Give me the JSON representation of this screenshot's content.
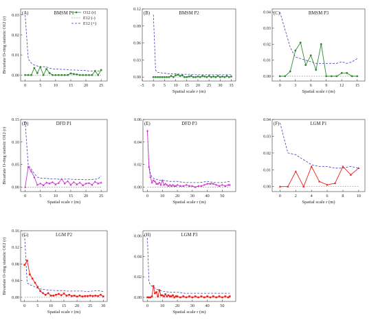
{
  "figure": {
    "legend": {
      "observed": "O12 (r)",
      "lower": "E12 (-)",
      "upper": "E12 (+)"
    },
    "colors": {
      "green": "#2e8b2e",
      "magenta": "#cc33cc",
      "red": "#e8201b",
      "envelope": "#3b3bb5",
      "lower": "#999999"
    }
  },
  "chart_data": [
    {
      "panel": "(A)",
      "title": "BMSM P1",
      "type": "line",
      "color": "green",
      "ylabel": "Bivariate O-ring statistic O12 (r)",
      "xlabel": "",
      "xlim": [
        -1.5,
        27
      ],
      "ylim": [
        -0.003,
        0.033
      ],
      "xticks": [
        0,
        5,
        10,
        15,
        20,
        25
      ],
      "yticks": [
        0.0,
        0.01,
        0.02,
        0.03
      ],
      "ytick_labels": [
        "0.00",
        "0.01",
        "0.02",
        "0.03"
      ],
      "legend": true,
      "observed": {
        "x": [
          0,
          1,
          2,
          3,
          4,
          5,
          6,
          7,
          8,
          9,
          10,
          11,
          12,
          13,
          14,
          15,
          16,
          17,
          18,
          19,
          20,
          21,
          22,
          23,
          24,
          25
        ],
        "y": [
          0,
          0,
          0,
          0.0035,
          0.001,
          0.004,
          0,
          0.003,
          0.001,
          0,
          0,
          0,
          0,
          0,
          0,
          0.0008,
          0.0005,
          0.0003,
          0,
          0,
          0,
          0,
          0,
          0.002,
          0,
          0.0025
        ]
      },
      "upper": {
        "x": [
          0,
          1,
          2,
          3,
          4,
          5,
          6,
          7,
          8,
          9,
          10,
          11,
          12,
          13,
          14,
          15,
          16,
          17,
          18,
          19,
          20,
          21,
          22,
          23,
          24,
          25
        ],
        "y": [
          0.03,
          0.008,
          0.006,
          0.005,
          0.0045,
          0.004,
          0.0042,
          0.004,
          0.0035,
          0.003,
          0.003,
          0.003,
          0.0028,
          0.0028,
          0.0027,
          0.0025,
          0.0025,
          0.0025,
          0.0023,
          0.0023,
          0.0022,
          0.002,
          0.002,
          0.0022,
          0.002,
          0.0022
        ]
      },
      "lower": {
        "x": [
          0,
          25
        ],
        "y": [
          0,
          0
        ]
      }
    },
    {
      "panel": "(B)",
      "title": "BMSM P2",
      "type": "line",
      "color": "green",
      "ylabel": "",
      "xlabel": "Spatial scale r (m)",
      "xlim": [
        -5,
        37
      ],
      "ylim": [
        -0.007,
        0.12
      ],
      "xticks": [
        -5,
        0,
        5,
        10,
        15,
        20,
        25,
        30,
        35
      ],
      "yticks": [
        0.0,
        0.03,
        0.06,
        0.09,
        0.12
      ],
      "ytick_labels": [
        "0.00",
        "0.03",
        "0.06",
        "0.09",
        "0.12"
      ],
      "observed": {
        "x": [
          0,
          1,
          2,
          3,
          4,
          5,
          6,
          7,
          8,
          9,
          10,
          11,
          12,
          13,
          14,
          15,
          16,
          17,
          18,
          19,
          20,
          21,
          22,
          23,
          24,
          25,
          26,
          27,
          28,
          29,
          30,
          31,
          32,
          33,
          34,
          35
        ],
        "y": [
          0,
          0,
          0,
          0,
          0,
          0,
          0,
          0,
          0.002,
          0,
          0.003,
          0.004,
          0.002,
          0.003,
          0,
          0,
          0.001,
          0.002,
          0,
          0,
          0.001,
          0,
          0.002,
          0.001,
          0,
          0.002,
          0,
          0.001,
          0,
          0.002,
          0,
          0.001,
          0,
          0.002,
          0,
          0.001
        ]
      },
      "upper": {
        "x": [
          0,
          1,
          2,
          3,
          4,
          5,
          6,
          7,
          8,
          9,
          10,
          12,
          14,
          16,
          18,
          20,
          22,
          24,
          26,
          28,
          30,
          32,
          34,
          35
        ],
        "y": [
          0.11,
          0.012,
          0.008,
          0.008,
          0.007,
          0.007,
          0.006,
          0.006,
          0.006,
          0.005,
          0.006,
          0.005,
          0.005,
          0.005,
          0.004,
          0.004,
          0.004,
          0.004,
          0.004,
          0.004,
          0.004,
          0.004,
          0.004,
          0.004
        ]
      },
      "lower": {
        "x": [
          0,
          35
        ],
        "y": [
          0,
          0
        ]
      }
    },
    {
      "panel": "(C)",
      "title": "BMSM P3",
      "type": "line",
      "color": "green",
      "ylabel": "",
      "xlabel": "Spatial scale r (m)",
      "xlim": [
        -1.5,
        16.5
      ],
      "ylim": [
        -0.003,
        0.042
      ],
      "xticks": [
        0,
        3,
        6,
        9,
        12,
        15
      ],
      "yticks": [
        0.0,
        0.01,
        0.02,
        0.03,
        0.04
      ],
      "ytick_labels": [
        "0.00",
        "0.01",
        "0.02",
        "0.03",
        "0.04"
      ],
      "observed": {
        "x": [
          0,
          1,
          2,
          3,
          4,
          5,
          6,
          7,
          8,
          9,
          10,
          11,
          12,
          13,
          14,
          15
        ],
        "y": [
          0,
          0,
          0.003,
          0.016,
          0.021,
          0.007,
          0.013,
          0.004,
          0.02,
          0,
          0,
          0,
          0.002,
          0.002,
          0,
          0
        ]
      },
      "upper": {
        "x": [
          0,
          1,
          2,
          3,
          4,
          5,
          6,
          7,
          8,
          9,
          10,
          11,
          12,
          13,
          14,
          15
        ],
        "y": [
          0.04,
          0.029,
          0.018,
          0.012,
          0.011,
          0.01,
          0.009,
          0.008,
          0.008,
          0.008,
          0.008,
          0.008,
          0.009,
          0.008,
          0.009,
          0.011
        ]
      },
      "lower": {
        "x": [
          0,
          15
        ],
        "y": [
          0,
          0
        ]
      }
    },
    {
      "panel": "(D)",
      "title": "DFD P1",
      "type": "line",
      "color": "magenta",
      "ylabel": "Bivariate O-ring statistic O12 (r)",
      "xlabel": "Spatial scale r (m)",
      "xlim": [
        -1.5,
        27
      ],
      "ylim": [
        -0.01,
        0.15
      ],
      "xticks": [
        0,
        5,
        10,
        15,
        20,
        25
      ],
      "yticks": [
        0.0,
        0.05,
        0.1,
        0.15
      ],
      "ytick_labels": [
        "0.00",
        "0.05",
        "0.10",
        "0.15"
      ],
      "observed": {
        "x": [
          0,
          1,
          2,
          3,
          4,
          5,
          6,
          7,
          8,
          9,
          10,
          11,
          12,
          13,
          14,
          15,
          16,
          17,
          18,
          19,
          20,
          21,
          22,
          23,
          24,
          25
        ],
        "y": [
          0,
          0.045,
          0.035,
          0.022,
          0.005,
          0.008,
          0.004,
          0.01,
          0.008,
          0.011,
          0.006,
          0.009,
          0.018,
          0.008,
          0.013,
          0.005,
          0.011,
          0.006,
          0.01,
          0.004,
          0.008,
          0.009,
          0.005,
          0.012,
          0.008,
          0.01
        ]
      },
      "upper": {
        "x": [
          0,
          1,
          2,
          3,
          4,
          5,
          6,
          7,
          8,
          10,
          12,
          14,
          16,
          18,
          20,
          22,
          24,
          25
        ],
        "y": [
          0.145,
          0.048,
          0.04,
          0.03,
          0.022,
          0.02,
          0.019,
          0.02,
          0.018,
          0.018,
          0.017,
          0.018,
          0.017,
          0.017,
          0.016,
          0.017,
          0.018,
          0.025
        ]
      },
      "lower": {
        "x": [
          0,
          25
        ],
        "y": [
          0,
          0
        ]
      }
    },
    {
      "panel": "(E)",
      "title": "DFD P3",
      "type": "line",
      "color": "magenta",
      "ylabel": "",
      "xlabel": "Spatial scale r (m)",
      "xlim": [
        -3,
        59
      ],
      "ylim": [
        -0.004,
        0.06
      ],
      "xticks": [
        0,
        10,
        20,
        30,
        40,
        50
      ],
      "yticks": [
        0.0,
        0.02,
        0.04,
        0.06
      ],
      "ytick_labels": [
        "0.00",
        "0.02",
        "0.04",
        "0.06"
      ],
      "observed": {
        "x": [
          0,
          1,
          2,
          3,
          4,
          5,
          6,
          7,
          8,
          9,
          10,
          11,
          12,
          13,
          14,
          15,
          16,
          17,
          18,
          19,
          20,
          22,
          24,
          26,
          28,
          30,
          32,
          34,
          36,
          38,
          40,
          42,
          44,
          46,
          48,
          50,
          52,
          54,
          55
        ],
        "y": [
          0.05,
          0.018,
          0.009,
          0.004,
          0.006,
          0.005,
          0.003,
          0.003,
          0.004,
          0.002,
          0.006,
          0.002,
          0.003,
          0.002,
          0.001,
          0.002,
          0.001,
          0.002,
          0.001,
          0.001,
          0.002,
          0.001,
          0.001,
          0.002,
          0.001,
          0.001,
          0.0,
          0.001,
          0.001,
          0.002,
          0.003,
          0.003,
          0.003,
          0.002,
          0.001,
          0.002,
          0.001,
          0.002,
          0.002
        ]
      },
      "upper": {
        "x": [
          0,
          1,
          2,
          3,
          4,
          5,
          6,
          8,
          10,
          15,
          20,
          25,
          30,
          35,
          40,
          45,
          50,
          55
        ],
        "y": [
          0.05,
          0.02,
          0.012,
          0.009,
          0.008,
          0.007,
          0.007,
          0.006,
          0.006,
          0.005,
          0.005,
          0.004,
          0.004,
          0.004,
          0.005,
          0.004,
          0.004,
          0.005
        ]
      },
      "lower": {
        "x": [
          0,
          55
        ],
        "y": [
          0,
          0
        ]
      }
    },
    {
      "panel": "(F)",
      "title": "LGM  P1",
      "type": "line",
      "color": "red",
      "ylabel": "",
      "xlabel": "Spatial scale r (m)",
      "xlim": [
        -1,
        10.8
      ],
      "ylim": [
        -0.003,
        0.04
      ],
      "xticks": [
        0,
        2,
        4,
        6,
        8,
        10
      ],
      "yticks": [
        0.0,
        0.01,
        0.02,
        0.03,
        0.04
      ],
      "ytick_labels": [
        "0.00",
        "0.01",
        "0.02",
        "0.03",
        "0.04"
      ],
      "observed": {
        "x": [
          0,
          1,
          2,
          3,
          4,
          5,
          6,
          7,
          8,
          9,
          10
        ],
        "y": [
          0,
          0,
          0.009,
          0,
          0.012,
          0.003,
          0.001,
          0.002,
          0.012,
          0.007,
          0.011
        ]
      },
      "upper": {
        "x": [
          0,
          1,
          2,
          3,
          4,
          5,
          6,
          7,
          8,
          9,
          10
        ],
        "y": [
          0.038,
          0.02,
          0.019,
          0.016,
          0.013,
          0.012,
          0.012,
          0.011,
          0.011,
          0.012,
          0.011
        ]
      },
      "lower": {
        "x": [
          0,
          10
        ],
        "y": [
          0,
          0
        ]
      }
    },
    {
      "panel": "(G)",
      "title": "LGM  P2",
      "type": "line",
      "color": "red",
      "ylabel": "Bivariate O-ring statistic O12 (r)",
      "xlabel": "Spatial scale r (m)",
      "xlim": [
        -1.5,
        31.5
      ],
      "ylim": [
        -0.01,
        0.16
      ],
      "xticks": [
        0,
        5,
        10,
        15,
        20,
        25,
        30
      ],
      "yticks": [
        0.0,
        0.04,
        0.08,
        0.12,
        0.16
      ],
      "ytick_labels": [
        "0.00",
        "0.04",
        "0.08",
        "0.12",
        "0.16"
      ],
      "observed": {
        "x": [
          0,
          1,
          2,
          3,
          4,
          5,
          6,
          7,
          8,
          9,
          10,
          11,
          12,
          13,
          14,
          15,
          16,
          17,
          18,
          19,
          20,
          21,
          22,
          23,
          24,
          25,
          26,
          27,
          28,
          29,
          30
        ],
        "y": [
          0.078,
          0.088,
          0.055,
          0.045,
          0.035,
          0.025,
          0.015,
          0.01,
          0.006,
          0.01,
          0.004,
          0.004,
          0.006,
          0.008,
          0.005,
          0.009,
          0.004,
          0.006,
          0.003,
          0.004,
          0.002,
          0.004,
          0.002,
          0.003,
          0.003,
          0.004,
          0.003,
          0.004,
          0.003,
          0.006,
          0.002
        ]
      },
      "upper": {
        "x": [
          0,
          1,
          2,
          3,
          4,
          5,
          6,
          8,
          10,
          12,
          14,
          16,
          18,
          20,
          22,
          24,
          26,
          28,
          30
        ],
        "y": [
          0.15,
          0.035,
          0.03,
          0.028,
          0.025,
          0.022,
          0.02,
          0.018,
          0.017,
          0.016,
          0.016,
          0.015,
          0.015,
          0.015,
          0.015,
          0.014,
          0.015,
          0.016,
          0.014
        ]
      },
      "lower": {
        "x": [
          0,
          30
        ],
        "y": [
          0,
          0
        ]
      }
    },
    {
      "panel": "(H)",
      "title": "LGM  P3",
      "type": "line",
      "color": "red",
      "ylabel": "",
      "xlabel": "Spatial scale r (m)",
      "xlim": [
        -3,
        59
      ],
      "ylim": [
        -0.004,
        0.065
      ],
      "xticks": [
        0,
        10,
        20,
        30,
        40,
        50
      ],
      "yticks": [
        0.0,
        0.02,
        0.04,
        0.06
      ],
      "ytick_labels": [
        "0.00",
        "0.02",
        "0.04",
        "0.06"
      ],
      "observed": {
        "x": [
          0,
          1,
          2,
          3,
          4,
          5,
          6,
          7,
          8,
          9,
          10,
          11,
          12,
          13,
          14,
          15,
          16,
          17,
          18,
          19,
          20,
          22,
          24,
          26,
          28,
          30,
          32,
          34,
          36,
          38,
          40,
          42,
          44,
          46,
          48,
          50,
          52,
          54,
          55
        ],
        "y": [
          0,
          0,
          0,
          0.001,
          0.011,
          0.004,
          0.005,
          0.001,
          0.007,
          0.002,
          0.002,
          0.001,
          0.003,
          0.001,
          0.002,
          0.001,
          0.001,
          0.002,
          0.0,
          0.001,
          0.001,
          0.0,
          0.001,
          0.0,
          0.001,
          0.0,
          0.001,
          0.0,
          0.001,
          0.0,
          0.001,
          0.0,
          0.001,
          0.0,
          0.001,
          0.0,
          0.001,
          0.0,
          0.001
        ]
      },
      "upper": {
        "x": [
          0,
          1,
          2,
          3,
          4,
          5,
          6,
          8,
          10,
          15,
          20,
          25,
          30,
          35,
          40,
          45,
          50,
          55
        ],
        "y": [
          0.058,
          0.015,
          0.012,
          0.011,
          0.01,
          0.009,
          0.008,
          0.007,
          0.006,
          0.005,
          0.005,
          0.004,
          0.004,
          0.004,
          0.004,
          0.004,
          0.004,
          0.004
        ]
      },
      "lower": {
        "x": [
          0,
          55
        ],
        "y": [
          0,
          0
        ]
      }
    }
  ]
}
